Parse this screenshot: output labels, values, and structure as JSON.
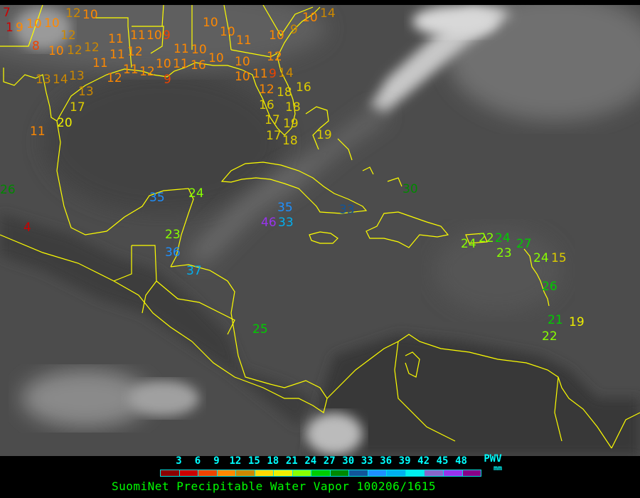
{
  "legend": {
    "title": "SuomiNet Precipitable Water Vapor 100206/1615",
    "unit_label": "PWV",
    "unit": "mm",
    "ticks": [
      "3",
      "6",
      "9",
      "12",
      "15",
      "18",
      "21",
      "24",
      "27",
      "30",
      "33",
      "36",
      "39",
      "42",
      "45",
      "48"
    ],
    "colors": [
      "#8b0000",
      "#cc0000",
      "#ee4400",
      "#ff8800",
      "#cc8800",
      "#ffd700",
      "#eeee00",
      "#88ff00",
      "#00cc00",
      "#008800",
      "#115599",
      "#1e90ff",
      "#00b0f0",
      "#00eeee",
      "#8866cc",
      "#9933ee",
      "#880088"
    ]
  },
  "map": {
    "coastline_color": "#ffff00",
    "stations": [
      {
        "v": "7",
        "c": "#cc0000"
      },
      {
        "v": "10",
        "c": "#ff8800"
      },
      {
        "v": "12",
        "c": "#cc8800"
      },
      {
        "v": "10",
        "c": "#ff8800"
      },
      {
        "v": "9",
        "c": "#ff8800"
      },
      {
        "v": "10",
        "c": "#ff8800"
      },
      {
        "v": "12",
        "c": "#cc8800"
      },
      {
        "v": "8",
        "c": "#ee4400"
      },
      {
        "v": "10",
        "c": "#ff8800"
      },
      {
        "v": "12",
        "c": "#cc8800"
      },
      {
        "v": "12",
        "c": "#cc8800"
      },
      {
        "v": "11",
        "c": "#ff8800"
      },
      {
        "v": "13",
        "c": "#cc8800"
      },
      {
        "v": "14",
        "c": "#cc8800"
      },
      {
        "v": "13",
        "c": "#cc8800"
      },
      {
        "v": "13",
        "c": "#cc8800"
      },
      {
        "v": "17",
        "c": "#ddcc00"
      },
      {
        "v": "20",
        "c": "#eeee00"
      },
      {
        "v": "11",
        "c": "#ff8800"
      },
      {
        "v": "12",
        "c": "#ff8800"
      },
      {
        "v": "11",
        "c": "#ff8800"
      },
      {
        "v": "11",
        "c": "#ff8800"
      },
      {
        "v": "12",
        "c": "#ff8800"
      },
      {
        "v": "11",
        "c": "#ff8800"
      },
      {
        "v": "12",
        "c": "#ff8800"
      },
      {
        "v": "11",
        "c": "#ff8800"
      },
      {
        "v": "10",
        "c": "#ff8800"
      },
      {
        "v": "9",
        "c": "#ee4400"
      },
      {
        "v": "10",
        "c": "#ff8800"
      },
      {
        "v": "11",
        "c": "#ff8800"
      },
      {
        "v": "11",
        "c": "#ff8800"
      },
      {
        "v": "10",
        "c": "#ff8800"
      },
      {
        "v": "9",
        "c": "#ee4400"
      },
      {
        "v": "16",
        "c": "#ff8800"
      },
      {
        "v": "10",
        "c": "#ff8800"
      },
      {
        "v": "10",
        "c": "#ff8800"
      },
      {
        "v": "10",
        "c": "#ff8800"
      },
      {
        "v": "10",
        "c": "#ff8800"
      },
      {
        "v": "11",
        "c": "#ff8800"
      },
      {
        "v": "10",
        "c": "#ff8800"
      },
      {
        "v": "9",
        "c": "#cc8800"
      },
      {
        "v": "10",
        "c": "#ff8800"
      },
      {
        "v": "14",
        "c": "#cc8800"
      },
      {
        "v": "12",
        "c": "#ff8800"
      },
      {
        "v": "11",
        "c": "#ff8800"
      },
      {
        "v": "10",
        "c": "#ff8800"
      },
      {
        "v": "9",
        "c": "#ee4400"
      },
      {
        "v": "12",
        "c": "#ff8800"
      },
      {
        "v": "14",
        "c": "#cc8800"
      },
      {
        "v": "16",
        "c": "#ddcc00"
      },
      {
        "v": "18",
        "c": "#ddcc00"
      },
      {
        "v": "16",
        "c": "#ddcc00"
      },
      {
        "v": "17",
        "c": "#ddcc00"
      },
      {
        "v": "17",
        "c": "#ddcc00"
      },
      {
        "v": "18",
        "c": "#ddcc00"
      },
      {
        "v": "19",
        "c": "#ddcc00"
      },
      {
        "v": "18",
        "c": "#ddcc00"
      },
      {
        "v": "19",
        "c": "#ddcc00"
      },
      {
        "v": "35",
        "c": "#1e90ff"
      },
      {
        "v": "24",
        "c": "#88ff00"
      },
      {
        "v": "23",
        "c": "#88ff00"
      },
      {
        "v": "36",
        "c": "#1e90ff"
      },
      {
        "v": "37",
        "c": "#00b0f0"
      },
      {
        "v": "46",
        "c": "#9933ee"
      },
      {
        "v": "33",
        "c": "#00b0f0"
      },
      {
        "v": "35",
        "c": "#1e90ff"
      },
      {
        "v": "33",
        "c": "#115599"
      },
      {
        "v": "30",
        "c": "#008800"
      },
      {
        "v": "24",
        "c": "#88ff00"
      },
      {
        "v": "22",
        "c": "#88ff00"
      },
      {
        "v": "24",
        "c": "#00cc00"
      },
      {
        "v": "23",
        "c": "#88ff00"
      },
      {
        "v": "27",
        "c": "#00cc00"
      },
      {
        "v": "24",
        "c": "#88ff00"
      },
      {
        "v": "15",
        "c": "#ddcc00"
      },
      {
        "v": "26",
        "c": "#00cc00"
      },
      {
        "v": "21",
        "c": "#00cc00"
      },
      {
        "v": "19",
        "c": "#eeee00"
      },
      {
        "v": "22",
        "c": "#88ff00"
      },
      {
        "v": "25",
        "c": "#00cc00"
      },
      {
        "v": "26",
        "c": "#008800"
      },
      {
        "v": "4",
        "c": "#cc0000"
      },
      {
        "v": "1",
        "c": "#cc0000"
      }
    ]
  }
}
